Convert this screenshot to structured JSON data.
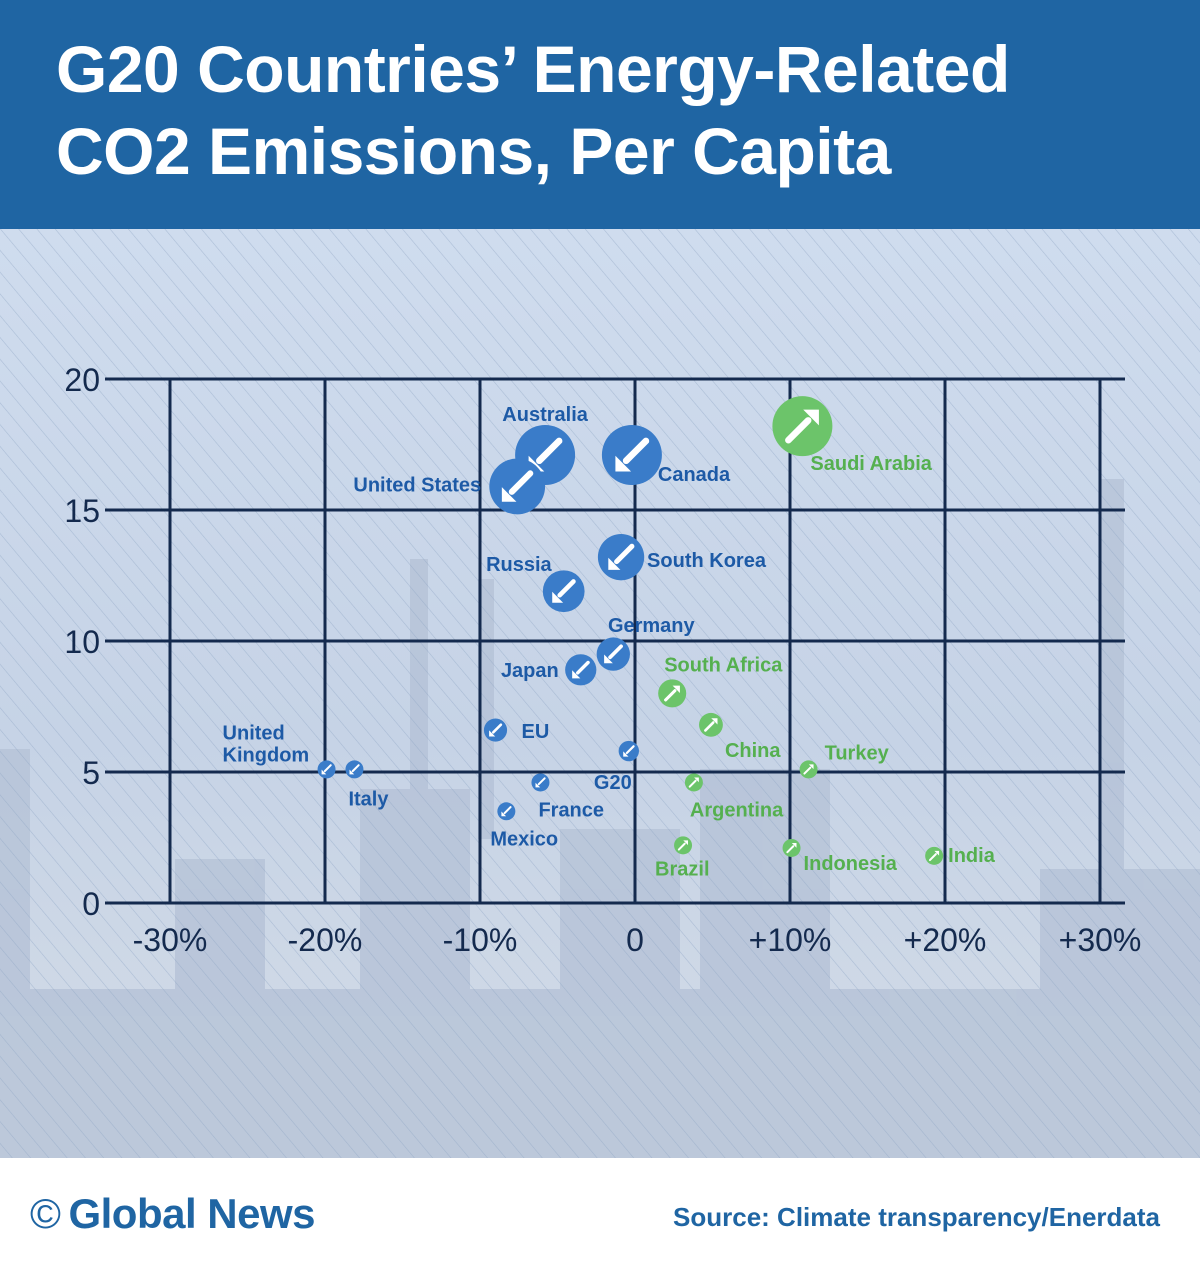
{
  "header": {
    "title": "G20 Countries’ Energy-Related CO2 Emissions, Per Capita"
  },
  "footer": {
    "copyright_symbol": "©",
    "brand": "Global News",
    "source": "Source: Climate transparency/Enerdata"
  },
  "colors": {
    "header_bg": "#1f65a3",
    "decrease": "#3a7cc9",
    "increase": "#6cc46a",
    "grid": "#142a4e",
    "label_blue": "#1d5aa6",
    "label_green": "#55b04f"
  },
  "chart_data": {
    "type": "scatter",
    "title": "G20 Countries’ Energy-Related CO2 Emissions, Per Capita",
    "xlim": [
      -30,
      30
    ],
    "ylim": [
      0,
      20
    ],
    "x_ticks": [
      -30,
      -20,
      -10,
      0,
      10,
      20,
      30
    ],
    "x_tick_labels": [
      "-30%",
      "-20%",
      "-10%",
      "0",
      "+10%",
      "+20%",
      "+30%"
    ],
    "y_ticks": [
      0,
      5,
      10,
      15,
      20
    ],
    "y_tick_labels": [
      "0",
      "5",
      "10",
      "15",
      "20"
    ],
    "grid": true,
    "points": [
      {
        "name": "Australia",
        "x": -5.8,
        "y": 17.1,
        "trend": "down"
      },
      {
        "name": "Canada",
        "x": -0.2,
        "y": 17.1,
        "trend": "down"
      },
      {
        "name": "United States",
        "x": -7.6,
        "y": 15.9,
        "trend": "down"
      },
      {
        "name": "Saudi Arabia",
        "x": 10.8,
        "y": 18.2,
        "trend": "up"
      },
      {
        "name": "South Korea",
        "x": -0.9,
        "y": 13.2,
        "trend": "down"
      },
      {
        "name": "Russia",
        "x": -4.6,
        "y": 11.9,
        "trend": "down"
      },
      {
        "name": "Germany",
        "x": -1.4,
        "y": 9.5,
        "trend": "down"
      },
      {
        "name": "Japan",
        "x": -3.5,
        "y": 8.9,
        "trend": "down"
      },
      {
        "name": "South Africa",
        "x": 2.4,
        "y": 8.0,
        "trend": "up"
      },
      {
        "name": "China",
        "x": 4.9,
        "y": 6.8,
        "trend": "up"
      },
      {
        "name": "EU",
        "x": -9.0,
        "y": 6.6,
        "trend": "down"
      },
      {
        "name": "G20",
        "x": -0.4,
        "y": 5.8,
        "trend": "down"
      },
      {
        "name": "United Kingdom",
        "x": -19.9,
        "y": 5.1,
        "trend": "down"
      },
      {
        "name": "Italy",
        "x": -18.1,
        "y": 5.1,
        "trend": "down"
      },
      {
        "name": "Turkey",
        "x": 11.2,
        "y": 5.1,
        "trend": "up"
      },
      {
        "name": "France",
        "x": -6.1,
        "y": 4.6,
        "trend": "down"
      },
      {
        "name": "Argentina",
        "x": 3.8,
        "y": 4.6,
        "trend": "up"
      },
      {
        "name": "Mexico",
        "x": -8.3,
        "y": 3.5,
        "trend": "down"
      },
      {
        "name": "Brazil",
        "x": 3.1,
        "y": 2.2,
        "trend": "up"
      },
      {
        "name": "Indonesia",
        "x": 10.1,
        "y": 2.1,
        "trend": "up"
      },
      {
        "name": "India",
        "x": 19.3,
        "y": 1.8,
        "trend": "up"
      }
    ]
  }
}
